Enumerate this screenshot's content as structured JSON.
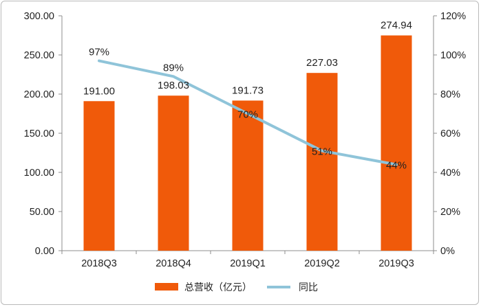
{
  "chart_data": {
    "type": "bar",
    "categories": [
      "2018Q3",
      "2018Q4",
      "2019Q1",
      "2019Q2",
      "2019Q3"
    ],
    "series": [
      {
        "name": "总营收（亿元）",
        "kind": "bar",
        "axis": "left",
        "color": "#f05a0a",
        "values": [
          191.0,
          198.03,
          191.73,
          227.03,
          274.94
        ],
        "labels": [
          "191.00",
          "198.03",
          "191.73",
          "227.03",
          "274.94"
        ]
      },
      {
        "name": "同比",
        "kind": "line",
        "axis": "right",
        "color": "#8fc4d9",
        "values": [
          97,
          89,
          70,
          51,
          44
        ],
        "labels": [
          "97%",
          "89%",
          "70%",
          "51%",
          "44%"
        ]
      }
    ],
    "y_left": {
      "min": 0,
      "max": 300,
      "ticks": [
        0,
        50,
        100,
        150,
        200,
        250,
        300
      ],
      "tick_labels": [
        "0.00",
        "50.00",
        "100.00",
        "150.00",
        "200.00",
        "250.00",
        "300.00"
      ]
    },
    "y_right": {
      "min": 0,
      "max": 120,
      "ticks": [
        0,
        20,
        40,
        60,
        80,
        100,
        120
      ],
      "tick_labels": [
        "0%",
        "20%",
        "40%",
        "60%",
        "80%",
        "100%",
        "120%"
      ]
    },
    "grid": false,
    "legend": "bottom"
  }
}
